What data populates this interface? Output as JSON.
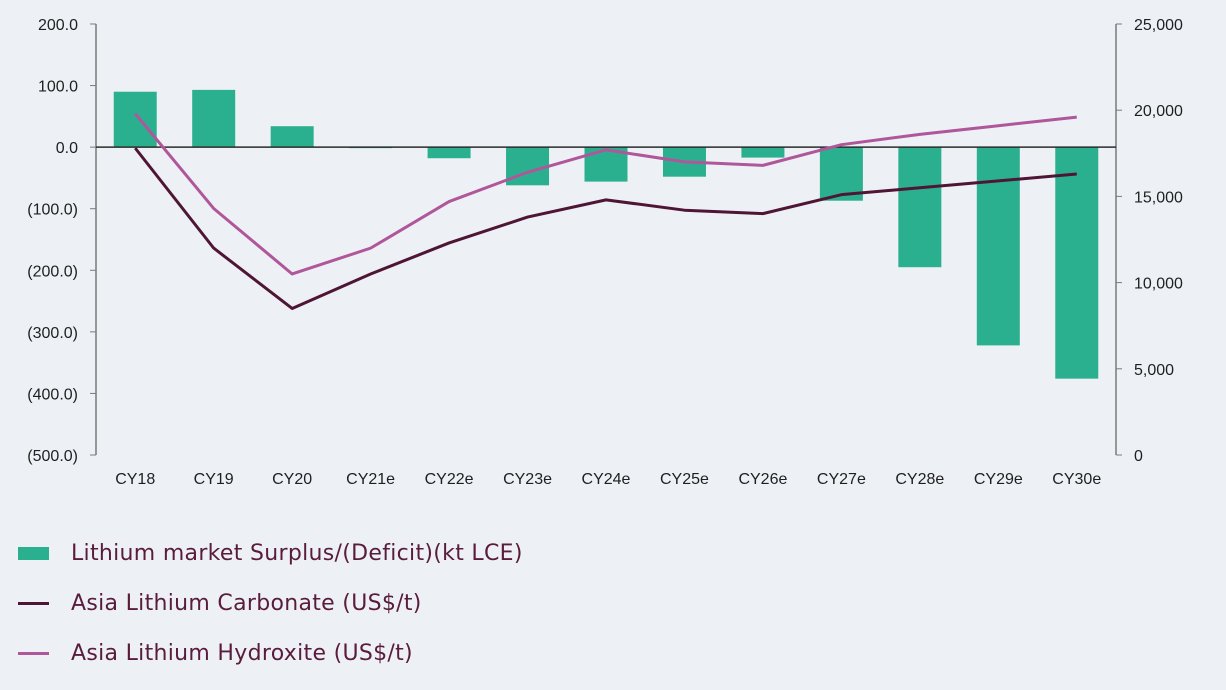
{
  "colors": {
    "bar": "#2bb08f",
    "carbonate": "#4e1634",
    "hydroxide": "#b0569a",
    "axis": "#7a7a7a",
    "legend_text": "#5a1c3c"
  },
  "chart_data": {
    "type": "bar",
    "categories": [
      "CY18",
      "CY19",
      "CY20",
      "CY21e",
      "CY22e",
      "CY23e",
      "CY24e",
      "CY25e",
      "CY26e",
      "CY27e",
      "CY28e",
      "CY29e",
      "CY30e"
    ],
    "series": [
      {
        "name": "Lithium market Surplus/(Deficit)(kt LCE)",
        "type": "bar",
        "axis": "left",
        "values": [
          90,
          93,
          34,
          -1,
          -18,
          -62,
          -56,
          -48,
          -17,
          -87,
          -195,
          -322,
          -376
        ]
      },
      {
        "name": "Asia Lithium Carbonate (US$/t)",
        "type": "line",
        "axis": "right",
        "values": [
          17800,
          12000,
          8500,
          10500,
          12300,
          13800,
          14800,
          14200,
          14000,
          15100,
          15500,
          15900,
          16300
        ]
      },
      {
        "name": "Asia Lithium Hydroxite (US$/t)",
        "type": "line",
        "axis": "right",
        "values": [
          19800,
          14300,
          10500,
          12000,
          14700,
          16400,
          17700,
          17000,
          16800,
          18000,
          18600,
          19100,
          19600
        ]
      }
    ],
    "y_left": {
      "ylim": [
        -500,
        200
      ],
      "ticks": [
        200,
        100,
        0,
        -100,
        -200,
        -300,
        -400,
        -500
      ],
      "tick_labels": [
        "200.0",
        "100.0",
        "0.0",
        "(100.0)",
        "(200.0)",
        "(300.0)",
        "(400.0)",
        "(500.0)"
      ]
    },
    "y_right": {
      "ylim": [
        0,
        25000
      ],
      "ticks": [
        25000,
        20000,
        15000,
        10000,
        5000,
        0
      ],
      "tick_labels": [
        "25,000",
        "20,000",
        "15,000",
        "10,000",
        "5,000",
        "0"
      ]
    },
    "legend": [
      {
        "label": "Lithium market Surplus/(Deficit)(kt LCE)",
        "kind": "bar"
      },
      {
        "label": "Asia Lithium Carbonate (US$/t)",
        "kind": "line-carbonate"
      },
      {
        "label": "Asia Lithium Hydroxite (US$/t)",
        "kind": "line-hydroxide"
      }
    ],
    "legend_placement": "bottom-left",
    "grid": false
  }
}
